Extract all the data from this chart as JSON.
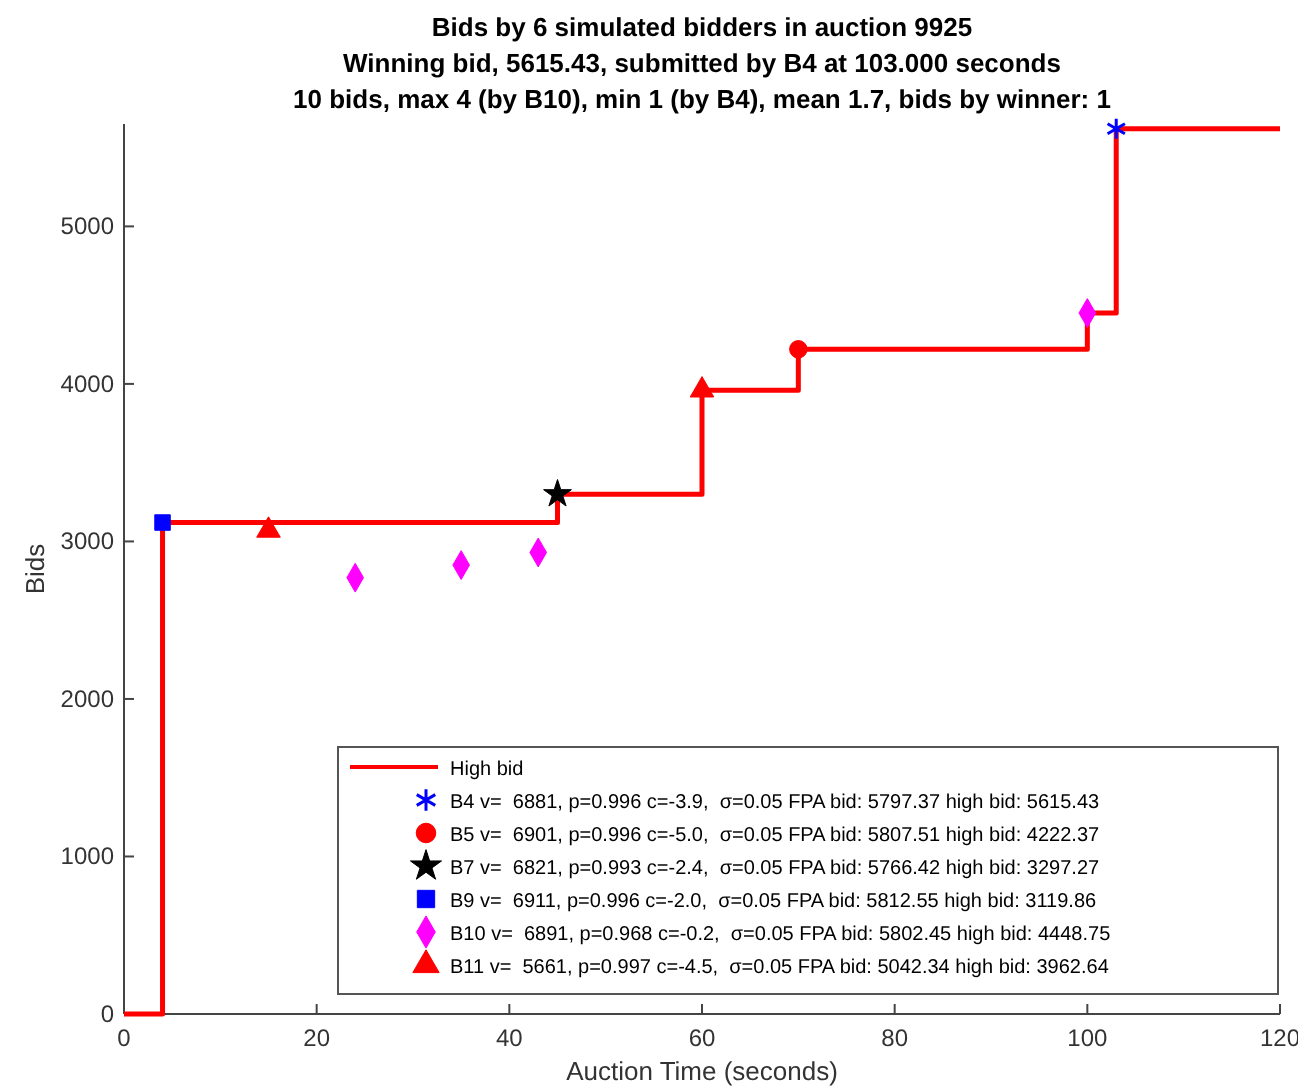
{
  "chart_data": {
    "type": "scatter",
    "title": "Bids by 6 simulated bidders in auction 9925",
    "subtitle": "Winning bid, 5615.43, submitted by B4 at 103.000 seconds\n10 bids, max 4 (by B10), min 1 (by B4), mean 1.7, bids by winner: 1",
    "xlabel": "Auction Time (seconds)",
    "ylabel": "Bids",
    "xlim": [
      0,
      120
    ],
    "ylim": [
      0,
      5650
    ],
    "xticks": [
      0,
      20,
      40,
      60,
      80,
      100,
      120
    ],
    "yticks": [
      0,
      1000,
      2000,
      3000,
      4000,
      5000
    ],
    "grid": false,
    "legend": "bottom right",
    "series": [
      {
        "name": "High bid",
        "type": "step",
        "color": "#ff0000",
        "line_style": "solid",
        "marker": "none",
        "x": [
          0,
          4,
          45,
          60,
          70,
          100,
          103,
          120
        ],
        "values": [
          0,
          3120,
          3300,
          3960,
          4220,
          4450,
          5620,
          5620
        ]
      },
      {
        "name": "B4 v=  6881, p=0.996 c=-3.9,  σ=0.05 FPA bid: 5797.37 high bid: 5615.43",
        "color": "#0000ff",
        "marker": "cross",
        "x": [
          103
        ],
        "values": [
          5620
        ]
      },
      {
        "name": "B5 v=  6901, p=0.996 c=-5.0,  σ=0.05 FPA bid: 5807.51 high bid: 4222.37",
        "color": "#ff0000",
        "marker": "circle",
        "x": [
          70
        ],
        "values": [
          4220
        ]
      },
      {
        "name": "B7 v=  6821, p=0.993 c=-2.4,  σ=0.05 FPA bid: 5766.42 high bid: 3297.27",
        "color": "#000000",
        "marker": "star",
        "x": [
          45
        ],
        "values": [
          3300
        ]
      },
      {
        "name": "B9 v=  6911, p=0.996 c=-2.0,  σ=0.05 FPA bid: 5812.55 high bid: 3119.86",
        "color": "#0000ff",
        "marker": "square",
        "x": [
          4
        ],
        "values": [
          3120
        ]
      },
      {
        "name": "B10 v=  6891, p=0.968 c=-0.2,  σ=0.05 FPA bid: 5802.45 high bid: 4448.75",
        "color": "#ff00ff",
        "marker": "diamond",
        "x": [
          24,
          35,
          43,
          100
        ],
        "values": [
          2770,
          2850,
          2930,
          4450
        ]
      },
      {
        "name": "B11 v=  5661, p=0.997 c=-4.5,  σ=0.05 FPA bid: 5042.34 high bid: 3962.64",
        "color": "#ff0000",
        "marker": "triangle",
        "x": [
          15,
          60
        ],
        "values": [
          3070,
          3960
        ]
      }
    ]
  }
}
